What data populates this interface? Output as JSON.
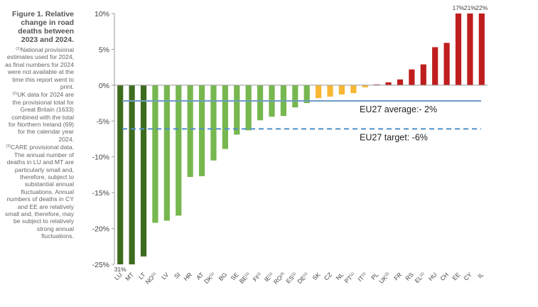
{
  "sidebar": {
    "title": "Figure 1. Relative change in road deaths between 2023 and 2024.",
    "notes": [
      {
        "marker": "(1)",
        "text": "National provisional estimates used for 2024, as final numbers for 2024 were not available at the time this report went to print."
      },
      {
        "marker": "(2)",
        "text": "UK data for 2024 are the provisional total for Great Britain (1633) combined with the total for Northern Ireland (69) for the calendar year 2024."
      },
      {
        "marker": "(3)",
        "text": "CARE provisional data. The annual number of deaths in LU and MT are particularly small and, therefore, subject to substantial annual fluctuations. Annual numbers of deaths in CY and EE are relatively small and, therefore, may be subject to relatively strong annual fluctuations."
      }
    ]
  },
  "chart_data": {
    "type": "bar",
    "title": "",
    "xlabel": "",
    "ylabel": "",
    "ylim": [
      -25,
      10
    ],
    "ytick_step": 5,
    "ytick_labels": [
      "10%",
      "5%",
      "0%",
      "-5%",
      "-10%",
      "-15%",
      "-20%",
      "-25%"
    ],
    "grid": false,
    "colors": {
      "dark_green": "#3e6b1f",
      "green": "#77b74f",
      "yellow": "#f7b733",
      "red": "#bf1e1e",
      "average_line": "#6f9bc6",
      "target_line": "#4f8fc9"
    },
    "categories": [
      {
        "label": "LU",
        "sup": "",
        "value": -31,
        "color": "dark_green",
        "data_label": "31%"
      },
      {
        "label": "MT",
        "sup": "",
        "value": -25,
        "color": "dark_green",
        "data_label": ""
      },
      {
        "label": "LT",
        "sup": "",
        "value": -23.9,
        "color": "dark_green",
        "data_label": ""
      },
      {
        "label": "NO",
        "sup": "(1)",
        "value": -19.2,
        "color": "green",
        "data_label": ""
      },
      {
        "label": "LV",
        "sup": "",
        "value": -18.9,
        "color": "green",
        "data_label": ""
      },
      {
        "label": "SI",
        "sup": "",
        "value": -18.2,
        "color": "green",
        "data_label": ""
      },
      {
        "label": "HR",
        "sup": "",
        "value": -12.8,
        "color": "green",
        "data_label": ""
      },
      {
        "label": "AT",
        "sup": "",
        "value": -12.7,
        "color": "green",
        "data_label": ""
      },
      {
        "label": "DK",
        "sup": "(1)",
        "value": -10.5,
        "color": "green",
        "data_label": ""
      },
      {
        "label": "BG",
        "sup": "",
        "value": -8.9,
        "color": "green",
        "data_label": ""
      },
      {
        "label": "SE",
        "sup": "",
        "value": -6.9,
        "color": "green",
        "data_label": ""
      },
      {
        "label": "BE",
        "sup": "(1)",
        "value": -6.3,
        "color": "green",
        "data_label": ""
      },
      {
        "label": "FI",
        "sup": "(1)",
        "value": -4.9,
        "color": "green",
        "data_label": ""
      },
      {
        "label": "IE",
        "sup": "(1)",
        "value": -4.4,
        "color": "green",
        "data_label": ""
      },
      {
        "label": "RO",
        "sup": "(3)",
        "value": -4.3,
        "color": "green",
        "data_label": ""
      },
      {
        "label": "ES",
        "sup": "(1)",
        "value": -3.1,
        "color": "green",
        "data_label": ""
      },
      {
        "label": "DE",
        "sup": "(1)",
        "value": -2.5,
        "color": "green",
        "data_label": ""
      },
      {
        "label": "SK",
        "sup": "",
        "value": -1.8,
        "color": "yellow",
        "data_label": ""
      },
      {
        "label": "CZ",
        "sup": "",
        "value": -1.6,
        "color": "yellow",
        "data_label": ""
      },
      {
        "label": "NL",
        "sup": "",
        "value": -1.3,
        "color": "yellow",
        "data_label": ""
      },
      {
        "label": "PT",
        "sup": "(1)",
        "value": -1.1,
        "color": "yellow",
        "data_label": ""
      },
      {
        "label": "IT",
        "sup": "(1)",
        "value": -0.3,
        "color": "yellow",
        "data_label": ""
      },
      {
        "label": "PL",
        "sup": "",
        "value": 0.1,
        "color": "red",
        "data_label": ""
      },
      {
        "label": "UK",
        "sup": "(2)",
        "value": 0.4,
        "color": "red",
        "data_label": ""
      },
      {
        "label": "FR",
        "sup": "",
        "value": 0.8,
        "color": "red",
        "data_label": ""
      },
      {
        "label": "RS",
        "sup": "",
        "value": 2.2,
        "color": "red",
        "data_label": ""
      },
      {
        "label": "EL",
        "sup": "(1)",
        "value": 2.9,
        "color": "red",
        "data_label": ""
      },
      {
        "label": "HU",
        "sup": "",
        "value": 5.3,
        "color": "red",
        "data_label": ""
      },
      {
        "label": "CH",
        "sup": "",
        "value": 5.9,
        "color": "red",
        "data_label": ""
      },
      {
        "label": "EE",
        "sup": "",
        "value": 17,
        "color": "red",
        "data_label": "17%"
      },
      {
        "label": "CY",
        "sup": "",
        "value": 21,
        "color": "red",
        "data_label": "21%"
      },
      {
        "label": "IL",
        "sup": "",
        "value": 22,
        "color": "red",
        "data_label": "22%"
      }
    ],
    "reference_lines": [
      {
        "label": "EU27 average:- 2%",
        "value": -2.2,
        "style": "solid",
        "color": "average_line"
      },
      {
        "label": "EU27 target: -6%",
        "value": -6.1,
        "style": "dashed",
        "color": "target_line"
      }
    ]
  }
}
